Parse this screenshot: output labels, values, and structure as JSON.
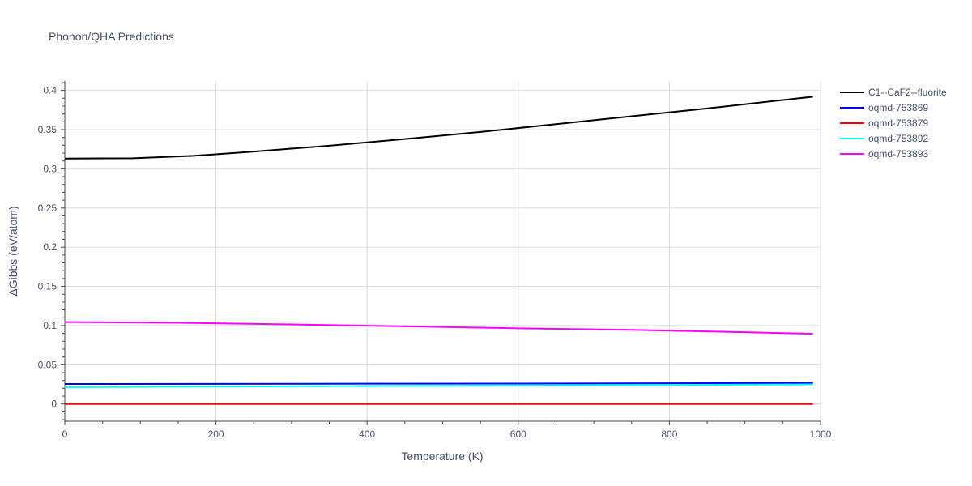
{
  "chart_data": {
    "type": "line",
    "title": "Phonon/QHA Predictions",
    "xlabel": "Temperature (K)",
    "ylabel": "ΔGibbs (eV/atom)",
    "xlim": [
      0,
      1000
    ],
    "ylim": [
      -0.022,
      0.412
    ],
    "x_ticks": [
      0,
      200,
      400,
      600,
      800,
      1000
    ],
    "x_tick_labels": [
      "0",
      "200",
      "400",
      "600",
      "800",
      "1000"
    ],
    "y_ticks": [
      0,
      0.05,
      0.1,
      0.15,
      0.2,
      0.25,
      0.3,
      0.35,
      0.4
    ],
    "y_tick_labels": [
      "0",
      "0.05",
      "0.1",
      "0.15",
      "0.2",
      "0.25",
      "0.3",
      "0.35",
      "0.4"
    ],
    "grid": true,
    "legend_position": "top-right",
    "series": [
      {
        "name": "C1--CaF2--fluorite",
        "color": "#000000",
        "x": [
          0,
          90,
          170,
          250,
          350,
          450,
          550,
          650,
          750,
          850,
          990
        ],
        "y": [
          0.313,
          0.3135,
          0.3165,
          0.322,
          0.3295,
          0.338,
          0.347,
          0.357,
          0.367,
          0.377,
          0.392
        ]
      },
      {
        "name": "oqmd-753869",
        "color": "#0000ff",
        "x": [
          0,
          200,
          400,
          600,
          800,
          990
        ],
        "y": [
          0.0255,
          0.0257,
          0.0259,
          0.0261,
          0.0264,
          0.0268
        ]
      },
      {
        "name": "oqmd-753879",
        "color": "#ff0000",
        "x": [
          0,
          990
        ],
        "y": [
          0,
          0
        ]
      },
      {
        "name": "oqmd-753892",
        "color": "#00ffff",
        "x": [
          0,
          200,
          400,
          600,
          800,
          990
        ],
        "y": [
          0.0215,
          0.0222,
          0.0229,
          0.0236,
          0.0243,
          0.025
        ]
      },
      {
        "name": "oqmd-753893",
        "color": "#ff00ff",
        "x": [
          0,
          150,
          300,
          450,
          600,
          750,
          900,
          990
        ],
        "y": [
          0.1045,
          0.1035,
          0.1015,
          0.099,
          0.0965,
          0.0945,
          0.0915,
          0.0895
        ]
      }
    ]
  }
}
